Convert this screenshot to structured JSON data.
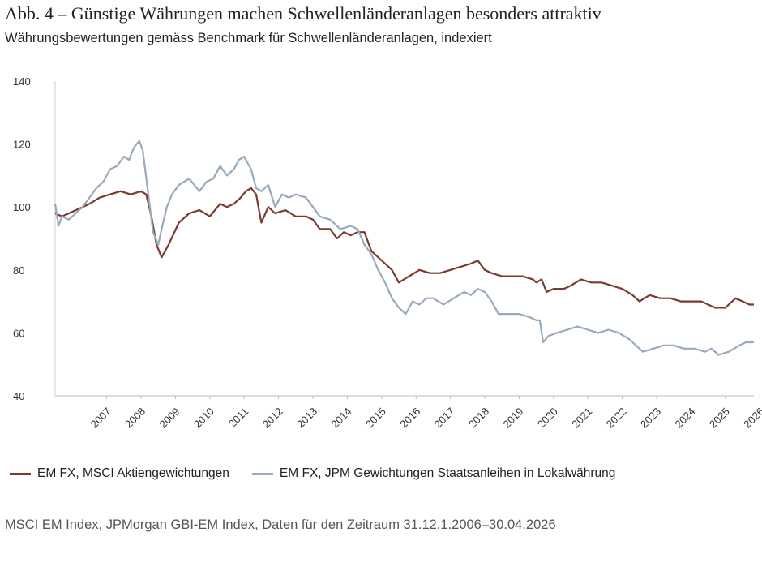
{
  "header": {
    "title": "Abb. 4 – Günstige Währungen machen Schwellenländeranlagen besonders attraktiv",
    "subtitle": "Währungsbewertungen gemäss Benchmark für Schwellenländeranlagen, indexiert"
  },
  "source": "MSCI EM Index, JPMorgan GBI-EM Index, Daten für den Zeitraum 31.12.1.2006–30.04.2026",
  "chart_data": {
    "type": "line",
    "title": "Abb. 4 – Günstige Währungen machen Schwellenländeranlagen besonders attraktiv",
    "subtitle": "Währungsbewertungen gemäss Benchmark für Schwellenländeranlagen, indexiert",
    "xlabel": "",
    "ylabel": "",
    "xlim": [
      2006.0,
      2026.33
    ],
    "ylim": [
      40,
      140
    ],
    "yticks": [
      40,
      60,
      80,
      100,
      120,
      140
    ],
    "xticks": [
      "2007",
      "2008",
      "2009",
      "2010",
      "2011",
      "2012",
      "2013",
      "2014",
      "2015",
      "2016",
      "2017",
      "2018",
      "2019",
      "2020",
      "2021",
      "2022",
      "2023",
      "2024",
      "2025",
      "2026"
    ],
    "grid": false,
    "legend_position": "bottom",
    "series": [
      {
        "name": "EM FX, MSCI Aktiengewichtungen",
        "color": "#7b3a2f",
        "x": [
          2006.0,
          2006.2,
          2006.4,
          2006.6,
          2006.8,
          2007.0,
          2007.3,
          2007.6,
          2007.9,
          2008.2,
          2008.5,
          2008.65,
          2008.8,
          2008.95,
          2009.1,
          2009.3,
          2009.6,
          2009.9,
          2010.2,
          2010.5,
          2010.8,
          2011.0,
          2011.2,
          2011.4,
          2011.55,
          2011.7,
          2011.85,
          2012.0,
          2012.2,
          2012.4,
          2012.7,
          2013.0,
          2013.3,
          2013.5,
          2013.7,
          2014.0,
          2014.2,
          2014.4,
          2014.6,
          2014.8,
          2015.0,
          2015.2,
          2015.4,
          2015.6,
          2015.8,
          2016.0,
          2016.3,
          2016.6,
          2016.9,
          2017.2,
          2017.5,
          2017.8,
          2018.1,
          2018.3,
          2018.5,
          2018.7,
          2019.0,
          2019.3,
          2019.6,
          2019.9,
          2020.0,
          2020.15,
          2020.3,
          2020.5,
          2020.8,
          2021.0,
          2021.3,
          2021.6,
          2021.9,
          2022.2,
          2022.5,
          2022.8,
          2023.0,
          2023.3,
          2023.6,
          2023.9,
          2024.2,
          2024.5,
          2024.8,
          2025.0,
          2025.2,
          2025.5,
          2025.8,
          2026.0,
          2026.2,
          2026.33
        ],
        "values": [
          98,
          97,
          98,
          99,
          100,
          101,
          103,
          104,
          105,
          104,
          105,
          104,
          97,
          88,
          84,
          88,
          95,
          98,
          99,
          97,
          101,
          100,
          101,
          103,
          105,
          106,
          104,
          95,
          100,
          98,
          99,
          97,
          97,
          96,
          93,
          93,
          90,
          92,
          91,
          92,
          92,
          86,
          84,
          82,
          80,
          76,
          78,
          80,
          79,
          79,
          80,
          81,
          82,
          83,
          80,
          79,
          78,
          78,
          78,
          77,
          76,
          77,
          73,
          74,
          74,
          75,
          77,
          76,
          76,
          75,
          74,
          72,
          70,
          72,
          71,
          71,
          70,
          70,
          70,
          69,
          68,
          68,
          71,
          70,
          69,
          69
        ]
      },
      {
        "name": "EM FX, JPM Gewichtungen Staatsanleihen in Lokalwährung",
        "color": "#9aa9bd",
        "x": [
          2006.0,
          2006.1,
          2006.2,
          2006.4,
          2006.6,
          2006.8,
          2007.0,
          2007.2,
          2007.4,
          2007.6,
          2007.8,
          2008.0,
          2008.15,
          2008.3,
          2008.45,
          2008.55,
          2008.7,
          2008.85,
          2009.0,
          2009.1,
          2009.25,
          2009.4,
          2009.6,
          2009.9,
          2010.2,
          2010.4,
          2010.6,
          2010.8,
          2011.0,
          2011.2,
          2011.35,
          2011.5,
          2011.7,
          2011.85,
          2012.0,
          2012.2,
          2012.4,
          2012.6,
          2012.8,
          2013.0,
          2013.3,
          2013.5,
          2013.7,
          2014.0,
          2014.3,
          2014.6,
          2014.8,
          2015.0,
          2015.2,
          2015.4,
          2015.6,
          2015.8,
          2016.0,
          2016.2,
          2016.4,
          2016.6,
          2016.8,
          2017.0,
          2017.3,
          2017.6,
          2017.9,
          2018.1,
          2018.3,
          2018.5,
          2018.7,
          2018.9,
          2019.2,
          2019.5,
          2019.8,
          2020.0,
          2020.1,
          2020.2,
          2020.35,
          2020.6,
          2020.9,
          2021.2,
          2021.5,
          2021.8,
          2022.1,
          2022.4,
          2022.7,
          2022.9,
          2023.1,
          2023.4,
          2023.7,
          2024.0,
          2024.3,
          2024.6,
          2024.9,
          2025.1,
          2025.3,
          2025.6,
          2025.9,
          2026.1,
          2026.33
        ],
        "values": [
          101,
          94,
          97,
          96,
          98,
          100,
          103,
          106,
          108,
          112,
          113,
          116,
          115,
          119,
          121,
          118,
          105,
          92,
          88,
          93,
          100,
          104,
          107,
          109,
          105,
          108,
          109,
          113,
          110,
          112,
          115,
          116,
          112,
          106,
          105,
          107,
          100,
          104,
          103,
          104,
          103,
          100,
          97,
          96,
          93,
          94,
          93,
          88,
          85,
          80,
          76,
          71,
          68,
          66,
          70,
          69,
          71,
          71,
          69,
          71,
          73,
          72,
          74,
          73,
          70,
          66,
          66,
          66,
          65,
          64,
          64,
          57,
          59,
          60,
          61,
          62,
          61,
          60,
          61,
          60,
          58,
          56,
          54,
          55,
          56,
          56,
          55,
          55,
          54,
          55,
          53,
          54,
          56,
          57,
          57
        ]
      }
    ]
  }
}
